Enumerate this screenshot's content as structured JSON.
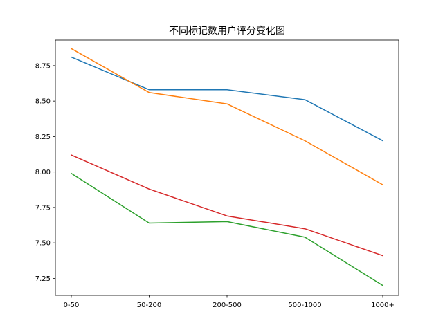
{
  "chart_data": {
    "type": "line",
    "title": "不同标记数用户评分变化图",
    "xlabel": "",
    "ylabel": "",
    "categories": [
      "0-50",
      "50-200",
      "200-500",
      "500-1000",
      "1000+"
    ],
    "ylim": [
      7.13,
      8.93
    ],
    "yticks": [
      "7.25",
      "7.50",
      "7.75",
      "8.00",
      "8.25",
      "8.50",
      "8.75"
    ],
    "grid": false,
    "legend": "none",
    "series": [
      {
        "color": "#1f77b4",
        "values": [
          8.81,
          8.58,
          8.58,
          8.51,
          8.22
        ]
      },
      {
        "color": "#ff7f0e",
        "values": [
          8.87,
          8.56,
          8.48,
          8.22,
          7.91
        ]
      },
      {
        "color": "#2ca02c",
        "values": [
          7.99,
          7.64,
          7.65,
          7.54,
          7.2
        ]
      },
      {
        "color": "#d62728",
        "values": [
          8.12,
          7.88,
          7.69,
          7.6,
          7.41
        ]
      }
    ]
  }
}
